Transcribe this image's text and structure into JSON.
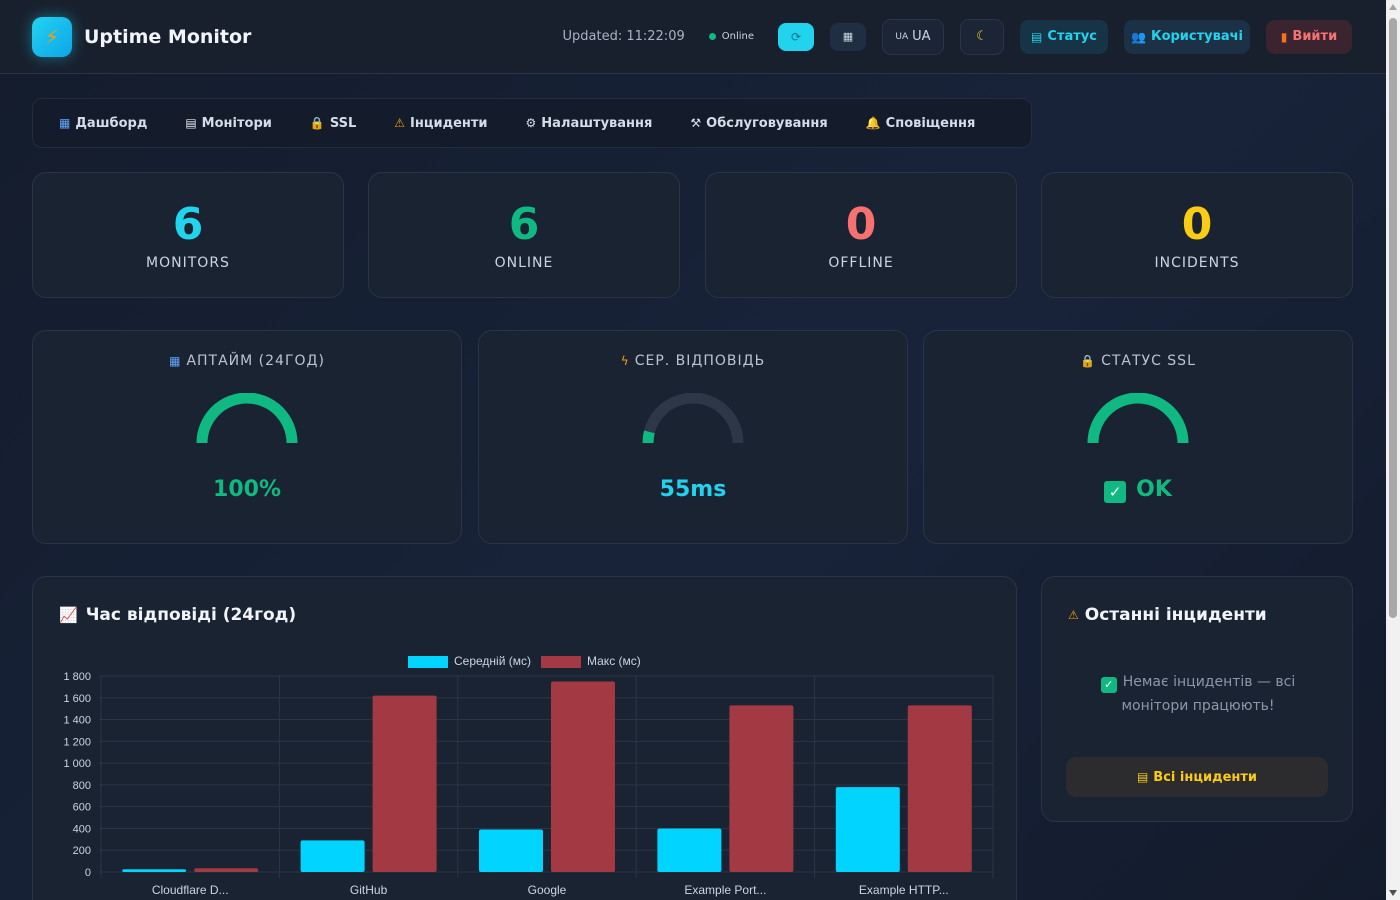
{
  "header": {
    "logo_icon": "lightning-icon",
    "title": "Uptime Monitor",
    "updated": "Updated: 11:22:09",
    "online_label": "Online",
    "refresh_icon": "refresh-icon",
    "chart_icon": "bar-chart-icon",
    "lang_flag": "UA",
    "lang_label": "UA",
    "theme_icon": "moon-icon",
    "status_label": "Статус",
    "users_label": "Користувачі",
    "logout_label": "Вийти"
  },
  "tabs": [
    {
      "label": "Дашборд",
      "icon": "bar-chart-icon"
    },
    {
      "label": "Монітори",
      "icon": "clipboard-icon"
    },
    {
      "label": "SSL",
      "icon": "lock-icon"
    },
    {
      "label": "Інциденти",
      "icon": "warning-icon"
    },
    {
      "label": "Налаштування",
      "icon": "gear-icon"
    },
    {
      "label": "Обслуговування",
      "icon": "tools-icon"
    },
    {
      "label": "Сповіщення",
      "icon": "bell-icon"
    }
  ],
  "stats": [
    {
      "value": "6",
      "label": "MONITORS",
      "color": "#22d3ee"
    },
    {
      "value": "6",
      "label": "ONLINE",
      "color": "#10b981"
    },
    {
      "value": "0",
      "label": "OFFLINE",
      "color": "#f87171"
    },
    {
      "value": "0",
      "label": "INCIDENTS",
      "color": "#facc15"
    }
  ],
  "gauges": [
    {
      "title": "АПТАЙМ (24ГОД)",
      "icon": "bar-chart-icon",
      "value": "100%",
      "fraction": 1.0,
      "color": "#10b981"
    },
    {
      "title": "СЕР. ВІДПОВІДЬ",
      "icon": "lightning-icon",
      "value": "55ms",
      "fraction": 0.08,
      "color": "#22d3ee"
    },
    {
      "title": "СТАТУС SSL",
      "icon": "lock-icon",
      "value": "OK",
      "fraction": 1.0,
      "color": "#10b981"
    }
  ],
  "incidents": {
    "title": "Останні інциденти",
    "empty": "Немає інцидентів — всі монітори працюють!",
    "button": "Всі інциденти"
  },
  "chart_data": {
    "type": "bar",
    "title": "Час відповіді (24год)",
    "categories": [
      "Cloudflare D...",
      "GitHub",
      "Google",
      "Example Port...",
      "Example HTTP..."
    ],
    "series": [
      {
        "name": "Середній (мс)",
        "color": "#00d4ff",
        "values": [
          25,
          290,
          390,
          400,
          780
        ]
      },
      {
        "name": "Макс (мс)",
        "color": "#a33a43",
        "values": [
          35,
          1620,
          1750,
          1530,
          1530
        ]
      }
    ],
    "yticks": [
      "0",
      "200",
      "400",
      "600",
      "800",
      "1 000",
      "1 200",
      "1 400",
      "1 600",
      "1 800"
    ],
    "ylim": [
      0,
      1800
    ],
    "legend": "top",
    "grid": true
  }
}
